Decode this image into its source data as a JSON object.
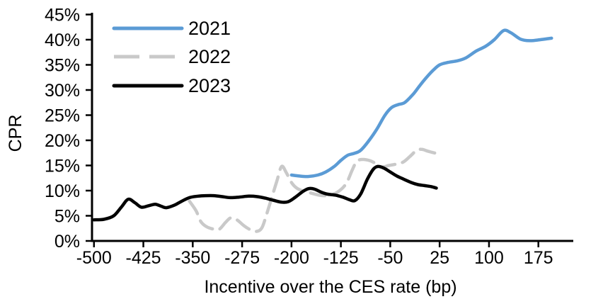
{
  "chart_data": {
    "type": "line",
    "title": "",
    "xlabel": "Incentive over the CES rate (bp)",
    "ylabel": "CPR",
    "xlim": [
      -503,
      228
    ],
    "ylim": [
      0,
      45
    ],
    "grid": false,
    "legend_position": "top-left",
    "x_ticks": [
      {
        "value": -500,
        "label": "-500"
      },
      {
        "value": -425,
        "label": "-425"
      },
      {
        "value": -350,
        "label": "-350"
      },
      {
        "value": -275,
        "label": "-275"
      },
      {
        "value": -200,
        "label": "-200"
      },
      {
        "value": -125,
        "label": "-125"
      },
      {
        "value": -50,
        "label": "-50"
      },
      {
        "value": 25,
        "label": "25"
      },
      {
        "value": 100,
        "label": "100"
      },
      {
        "value": 175,
        "label": "175"
      }
    ],
    "y_ticks": [
      {
        "value": 0,
        "label": "0%"
      },
      {
        "value": 5,
        "label": "5%"
      },
      {
        "value": 10,
        "label": "10%"
      },
      {
        "value": 15,
        "label": "15%"
      },
      {
        "value": 20,
        "label": "20%"
      },
      {
        "value": 25,
        "label": "25%"
      },
      {
        "value": 30,
        "label": "30%"
      },
      {
        "value": 35,
        "label": "35%"
      },
      {
        "value": 40,
        "label": "40%"
      },
      {
        "value": 45,
        "label": "45%"
      }
    ],
    "series": [
      {
        "name": "2021",
        "color": "#5B9BD5",
        "style": "solid",
        "points": [
          [
            -200,
            13.1
          ],
          [
            -188,
            12.9
          ],
          [
            -175,
            12.8
          ],
          [
            -160,
            13.1
          ],
          [
            -148,
            13.7
          ],
          [
            -135,
            14.8
          ],
          [
            -125,
            16.0
          ],
          [
            -115,
            17.0
          ],
          [
            -105,
            17.4
          ],
          [
            -95,
            18.0
          ],
          [
            -82,
            20.0
          ],
          [
            -70,
            22.3
          ],
          [
            -58,
            25.0
          ],
          [
            -48,
            26.5
          ],
          [
            -38,
            27.1
          ],
          [
            -28,
            27.5
          ],
          [
            -15,
            29.2
          ],
          [
            -5,
            30.9
          ],
          [
            5,
            32.5
          ],
          [
            15,
            33.9
          ],
          [
            25,
            35.0
          ],
          [
            38,
            35.5
          ],
          [
            52,
            35.8
          ],
          [
            65,
            36.4
          ],
          [
            80,
            37.7
          ],
          [
            95,
            38.7
          ],
          [
            108,
            40.0
          ],
          [
            122,
            41.8
          ],
          [
            133,
            41.4
          ],
          [
            148,
            40.1
          ],
          [
            162,
            39.8
          ],
          [
            178,
            40.0
          ],
          [
            195,
            40.3
          ]
        ]
      },
      {
        "name": "2022",
        "color": "#C9C9C9",
        "style": "dashed",
        "points": [
          [
            -355,
            7.9
          ],
          [
            -345,
            6.0
          ],
          [
            -338,
            3.9
          ],
          [
            -330,
            2.9
          ],
          [
            -320,
            2.4
          ],
          [
            -310,
            2.3
          ],
          [
            -300,
            3.7
          ],
          [
            -292,
            4.6
          ],
          [
            -283,
            4.2
          ],
          [
            -272,
            3.0
          ],
          [
            -262,
            2.2
          ],
          [
            -253,
            1.9
          ],
          [
            -245,
            2.6
          ],
          [
            -238,
            5.2
          ],
          [
            -230,
            8.6
          ],
          [
            -222,
            12.0
          ],
          [
            -215,
            14.8
          ],
          [
            -208,
            13.6
          ],
          [
            -200,
            11.6
          ],
          [
            -192,
            10.5
          ],
          [
            -182,
            9.9
          ],
          [
            -170,
            9.5
          ],
          [
            -158,
            9.1
          ],
          [
            -148,
            9.0
          ],
          [
            -136,
            9.3
          ],
          [
            -125,
            10.2
          ],
          [
            -116,
            11.6
          ],
          [
            -108,
            14.0
          ],
          [
            -101,
            15.8
          ],
          [
            -92,
            16.2
          ],
          [
            -82,
            16.0
          ],
          [
            -72,
            15.4
          ],
          [
            -63,
            14.7
          ],
          [
            -52,
            15.0
          ],
          [
            -40,
            15.3
          ],
          [
            -30,
            15.7
          ],
          [
            -20,
            16.8
          ],
          [
            -10,
            18.0
          ],
          [
            -2,
            18.2
          ],
          [
            8,
            17.8
          ],
          [
            17,
            17.5
          ],
          [
            25,
            17.3
          ]
        ]
      },
      {
        "name": "2023",
        "color": "#000000",
        "style": "solid",
        "points": [
          [
            -500,
            4.2
          ],
          [
            -485,
            4.3
          ],
          [
            -470,
            5.0
          ],
          [
            -458,
            6.8
          ],
          [
            -448,
            8.3
          ],
          [
            -438,
            7.6
          ],
          [
            -428,
            6.7
          ],
          [
            -417,
            7.0
          ],
          [
            -407,
            7.3
          ],
          [
            -398,
            6.9
          ],
          [
            -390,
            6.6
          ],
          [
            -378,
            7.1
          ],
          [
            -368,
            7.8
          ],
          [
            -355,
            8.6
          ],
          [
            -342,
            8.9
          ],
          [
            -330,
            9.0
          ],
          [
            -318,
            9.0
          ],
          [
            -305,
            8.8
          ],
          [
            -293,
            8.6
          ],
          [
            -280,
            8.7
          ],
          [
            -265,
            8.9
          ],
          [
            -252,
            8.8
          ],
          [
            -240,
            8.5
          ],
          [
            -228,
            8.1
          ],
          [
            -215,
            7.7
          ],
          [
            -205,
            7.8
          ],
          [
            -195,
            8.6
          ],
          [
            -183,
            9.8
          ],
          [
            -174,
            10.4
          ],
          [
            -165,
            10.3
          ],
          [
            -155,
            9.7
          ],
          [
            -145,
            9.3
          ],
          [
            -133,
            9.1
          ],
          [
            -122,
            8.7
          ],
          [
            -112,
            8.2
          ],
          [
            -104,
            8.0
          ],
          [
            -95,
            9.3
          ],
          [
            -85,
            12.2
          ],
          [
            -76,
            14.2
          ],
          [
            -69,
            14.8
          ],
          [
            -60,
            14.5
          ],
          [
            -50,
            13.7
          ],
          [
            -40,
            12.9
          ],
          [
            -30,
            12.3
          ],
          [
            -18,
            11.6
          ],
          [
            -8,
            11.2
          ],
          [
            2,
            11.0
          ],
          [
            12,
            10.8
          ],
          [
            20,
            10.5
          ]
        ]
      }
    ]
  }
}
